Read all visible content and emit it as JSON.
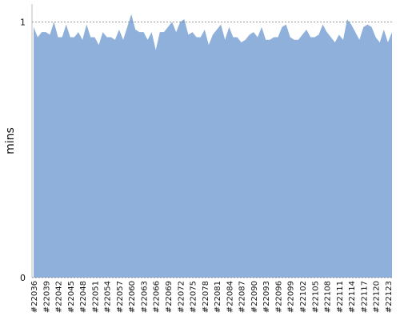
{
  "chart_data": {
    "type": "area",
    "y_label": "mins",
    "color": "#8eb0da",
    "grid": true,
    "ylim": [
      0,
      1.07
    ],
    "yticks": [
      0,
      1
    ],
    "categories": [
      "#22036",
      null,
      null,
      "#22039",
      null,
      null,
      "#22042",
      null,
      null,
      "#22045",
      null,
      null,
      "#22048",
      null,
      null,
      "#22051",
      null,
      null,
      "#22054",
      null,
      null,
      "#22057",
      null,
      null,
      "#22060",
      null,
      null,
      "#22063",
      null,
      null,
      "#22066",
      null,
      null,
      "#22069",
      null,
      null,
      "#22072",
      null,
      null,
      "#22075",
      null,
      null,
      "#22078",
      null,
      null,
      "#22081",
      null,
      null,
      "#22084",
      null,
      null,
      "#22087",
      null,
      null,
      "#22090",
      null,
      null,
      "#22093",
      null,
      null,
      "#22096",
      null,
      null,
      "#22099",
      null,
      null,
      "#22102",
      null,
      null,
      "#22105",
      null,
      null,
      "#22108",
      null,
      null,
      "#22111",
      null,
      null,
      "#22114",
      null,
      null,
      "#22117",
      null,
      null,
      "#22120",
      null,
      null,
      "#22123",
      null
    ],
    "values": [
      0.98,
      0.94,
      0.96,
      0.96,
      0.95,
      1.0,
      0.94,
      0.94,
      0.99,
      0.94,
      0.94,
      0.96,
      0.93,
      0.99,
      0.94,
      0.94,
      0.91,
      0.96,
      0.94,
      0.94,
      0.93,
      0.97,
      0.93,
      0.98,
      1.03,
      0.97,
      0.96,
      0.96,
      0.93,
      0.96,
      0.89,
      0.96,
      0.96,
      0.98,
      1.0,
      0.96,
      1.0,
      1.01,
      0.95,
      0.96,
      0.94,
      0.94,
      0.97,
      0.91,
      0.95,
      0.97,
      0.99,
      0.93,
      0.98,
      0.94,
      0.94,
      0.92,
      0.93,
      0.95,
      0.96,
      0.94,
      0.98,
      0.93,
      0.93,
      0.94,
      0.94,
      0.98,
      0.99,
      0.94,
      0.93,
      0.93,
      0.95,
      0.97,
      0.94,
      0.94,
      0.95,
      0.99,
      0.96,
      0.94,
      0.92,
      0.95,
      0.93,
      1.01,
      0.99,
      0.96,
      0.93,
      0.98,
      0.99,
      0.98,
      0.94,
      0.92,
      0.97,
      0.92,
      0.96
    ]
  }
}
